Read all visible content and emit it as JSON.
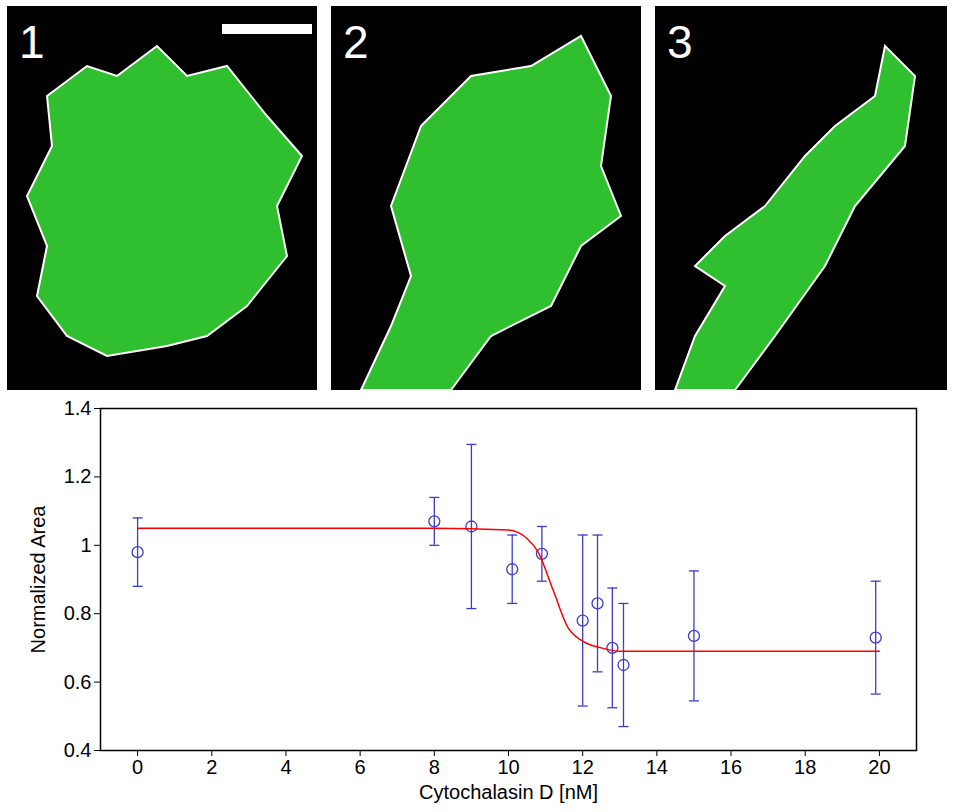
{
  "panels": [
    {
      "label": "1"
    },
    {
      "label": "2"
    },
    {
      "label": "3"
    }
  ],
  "chart_data": {
    "type": "scatter",
    "xlabel": "Cytochalasin D [nM]",
    "ylabel": "Normalized Area",
    "xlim": [
      -1,
      21
    ],
    "xticks": [
      0,
      2,
      4,
      6,
      8,
      10,
      12,
      14,
      16,
      18,
      20
    ],
    "ylim": [
      0.4,
      1.4
    ],
    "yticks": [
      0.4,
      0.6,
      0.8,
      1,
      1.2,
      1.4
    ],
    "grid": false,
    "series": [
      {
        "type": "scatter",
        "color": "#3c3cc8",
        "marker": "circle",
        "x": [
          0,
          8,
          9,
          10.1,
          10.9,
          12,
          12.4,
          12.8,
          13.1,
          15,
          19.9
        ],
        "values": [
          0.98,
          1.07,
          1.055,
          0.93,
          0.975,
          0.78,
          0.83,
          0.7,
          0.65,
          0.735,
          0.73
        ],
        "errors": [
          0.1,
          0.07,
          0.24,
          0.1,
          0.08,
          0.25,
          0.2,
          0.175,
          0.18,
          0.19,
          0.165
        ]
      },
      {
        "type": "line",
        "color": "#ff0000",
        "line_style": "solid",
        "x": [
          0,
          8,
          10,
          10.5,
          10.8,
          11.2,
          11.6,
          12,
          12.5,
          13,
          14,
          20
        ],
        "values": [
          1.05,
          1.05,
          1.045,
          1.02,
          0.98,
          0.87,
          0.76,
          0.72,
          0.7,
          0.69,
          0.69,
          0.69
        ]
      }
    ]
  }
}
